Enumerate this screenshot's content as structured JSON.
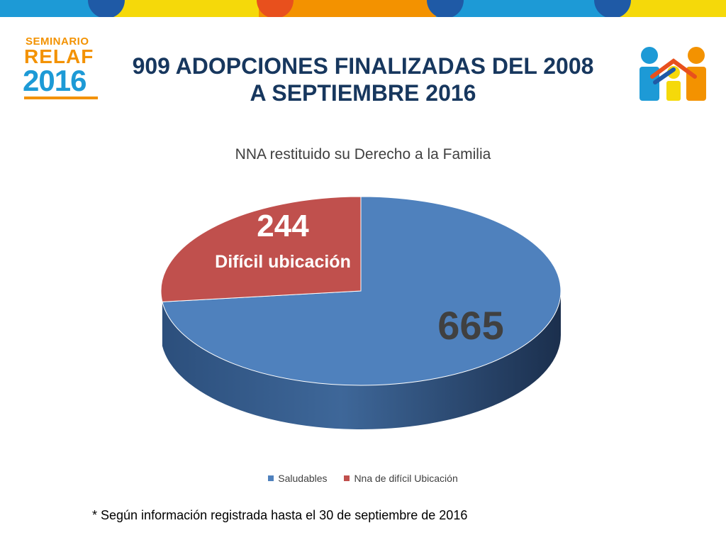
{
  "logo_left": {
    "line1": "SEMINARIO",
    "line2": "RELAF",
    "line3": "2016"
  },
  "title": {
    "line1": "909 ADOPCIONES FINALIZADAS DEL 2008",
    "line2": "A SEPTIEMBRE 2016"
  },
  "colors": {
    "title": "#17375e",
    "saludables": "#4f81bd",
    "dificil": "#c0504d",
    "topbar_yellow": "#f5d90a",
    "topbar_orange": "#f39200",
    "topbar_blue": "#1d9ad6",
    "topbar_darkblue": "#1f5aa6"
  },
  "chart_data": {
    "type": "pie",
    "style": "3d",
    "title": "NNA restituido su Derecho a la Familia",
    "categories": [
      "Saludables",
      "Nna de difícil Ubicación"
    ],
    "values": [
      665,
      244
    ],
    "data_labels": [
      "665",
      "244"
    ],
    "slice_annotation": "Difícil ubicación",
    "legend": {
      "position": "bottom",
      "entries": [
        "Saludables",
        "Nna de difícil Ubicación"
      ]
    }
  },
  "footnote": "* Según información registrada hasta el 30 de septiembre de 2016"
}
